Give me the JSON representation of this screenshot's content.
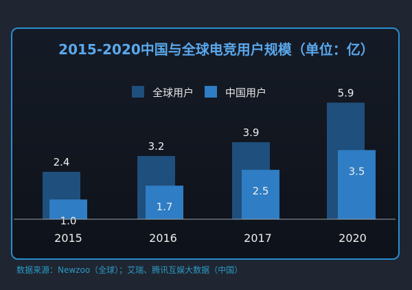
{
  "chart_data": {
    "type": "bar",
    "title": "2015-2020中国与全球电竞用户规模（单位：亿）",
    "categories": [
      "2015",
      "2016",
      "2017",
      "2020"
    ],
    "series": [
      {
        "name": "全球用户",
        "values": [
          2.4,
          3.2,
          3.9,
          5.9
        ],
        "color": "#1f4f7c"
      },
      {
        "name": "中国用户",
        "values": [
          1.0,
          1.7,
          2.5,
          3.5
        ],
        "color": "#2f7dc4"
      }
    ],
    "legend": "top-center",
    "grid": false,
    "ylim": [
      0,
      5.9
    ]
  },
  "source": "数据来源：Newzoo（全球）；艾瑞、腾讯互娱大数据（中国）",
  "colors": {
    "background": "#1f2631",
    "border": "#2a8fd0",
    "title": "#5aa8ec",
    "source": "#2b9ac6"
  }
}
